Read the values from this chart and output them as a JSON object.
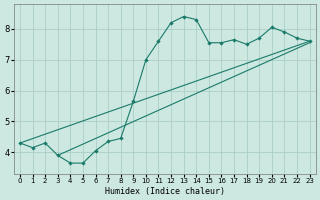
{
  "xlabel": "Humidex (Indice chaleur)",
  "bg_color": "#cce8e0",
  "line_color": "#1a7a6a",
  "grid_color": "#aacfc8",
  "xlim": [
    -0.5,
    23.5
  ],
  "ylim": [
    3.3,
    8.8
  ],
  "xticks": [
    0,
    1,
    2,
    3,
    4,
    5,
    6,
    7,
    8,
    9,
    10,
    11,
    12,
    13,
    14,
    15,
    16,
    17,
    18,
    19,
    20,
    21,
    22,
    23
  ],
  "yticks": [
    4,
    5,
    6,
    7,
    8
  ],
  "main_x": [
    0,
    1,
    2,
    3,
    4,
    5,
    6,
    7,
    8,
    9,
    10,
    11,
    12,
    13,
    14,
    15,
    16,
    17,
    18,
    19,
    20,
    21,
    22,
    23
  ],
  "main_y": [
    4.3,
    4.15,
    4.3,
    3.9,
    3.65,
    3.65,
    4.05,
    4.35,
    4.45,
    5.65,
    7.0,
    7.6,
    8.2,
    8.4,
    8.3,
    7.55,
    7.55,
    7.65,
    7.5,
    7.7,
    8.05,
    7.9,
    7.7,
    7.6
  ],
  "trend1_x": [
    0,
    23
  ],
  "trend1_y": [
    4.3,
    7.6
  ],
  "trend2_x": [
    3,
    23
  ],
  "trend2_y": [
    3.9,
    7.55
  ],
  "xlabel_fontsize": 6.0,
  "tick_fontsize": 5.0,
  "ytick_fontsize": 6.0,
  "linewidth": 0.8,
  "markersize": 2.2
}
